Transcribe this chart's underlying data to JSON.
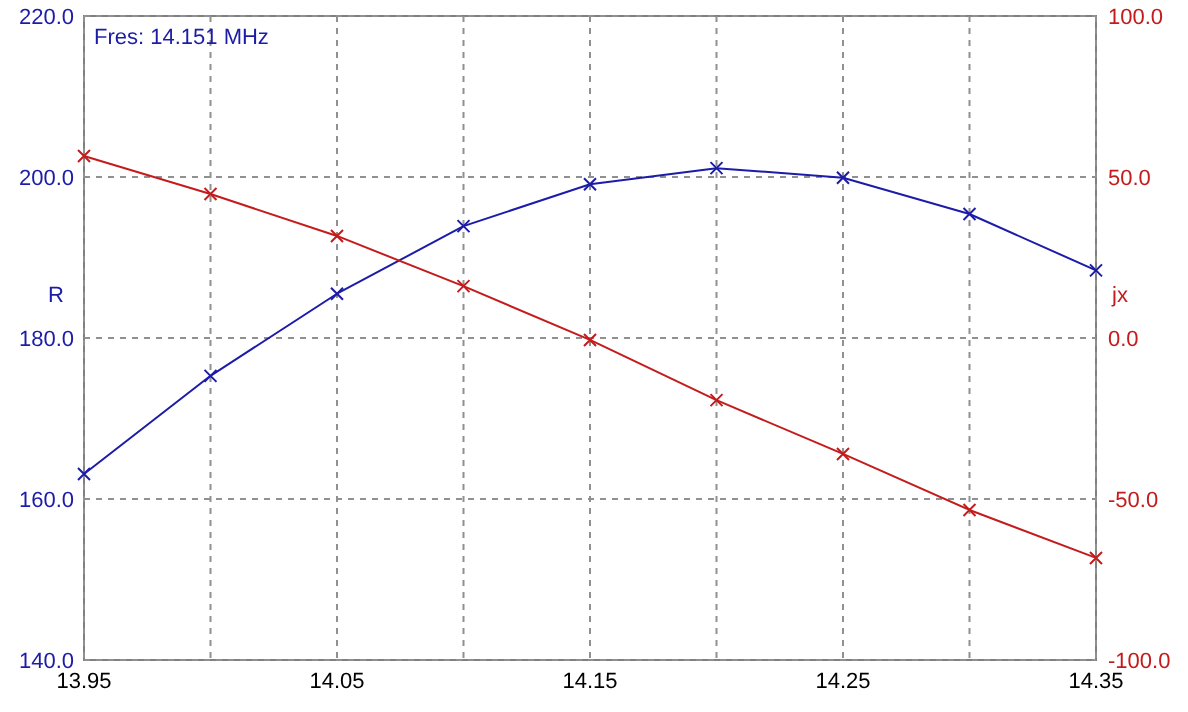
{
  "chart_data": {
    "type": "line",
    "x": [
      13.95,
      14.0,
      14.05,
      14.1,
      14.15,
      14.2,
      14.25,
      14.3,
      14.35
    ],
    "series": [
      {
        "color": "#1c1ca8",
        "values": [
          163.1,
          175.3,
          185.5,
          193.9,
          199.1,
          201.1,
          199.9,
          195.4,
          188.4
        ]
      },
      {
        "color": "#c41c1c",
        "axis": "y2",
        "values": [
          56.5,
          44.7,
          31.7,
          16.1,
          -0.6,
          -19.3,
          -36.0,
          -53.4,
          -68.3
        ]
      }
    ],
    "xlim": [
      13.95,
      14.35
    ],
    "xticks": [
      {
        "value": 13.95,
        "label": "13.95"
      },
      {
        "value": 14.0,
        "label": null
      },
      {
        "value": 14.05,
        "label": "14.05"
      },
      {
        "value": 14.1,
        "label": null
      },
      {
        "value": 14.15,
        "label": "14.15"
      },
      {
        "value": 14.2,
        "label": null
      },
      {
        "value": 14.25,
        "label": "14.25"
      },
      {
        "value": 14.3,
        "label": null
      },
      {
        "value": 14.35,
        "label": "14.35"
      }
    ],
    "ylim": [
      140,
      220
    ],
    "yticks": [
      {
        "value": 140,
        "label": "140.0"
      },
      {
        "value": 160,
        "label": "160.0"
      },
      {
        "value": 180,
        "label": "180.0"
      },
      {
        "value": 200,
        "label": "200.0"
      },
      {
        "value": 220,
        "label": "220.0"
      }
    ],
    "y2lim": [
      -100,
      100
    ],
    "y2ticks": [
      {
        "value": -100,
        "label": "-100.0"
      },
      {
        "value": -50,
        "label": "-50.0"
      },
      {
        "value": 0,
        "label": "0.0"
      },
      {
        "value": 50,
        "label": "50.0"
      },
      {
        "value": 100,
        "label": "100.0"
      }
    ],
    "ylabel": "R",
    "y2label": "jx",
    "annotations": [
      "Fres: 14.151 MHz"
    ],
    "grid": true,
    "marker": "cross",
    "line_style": "solid"
  }
}
